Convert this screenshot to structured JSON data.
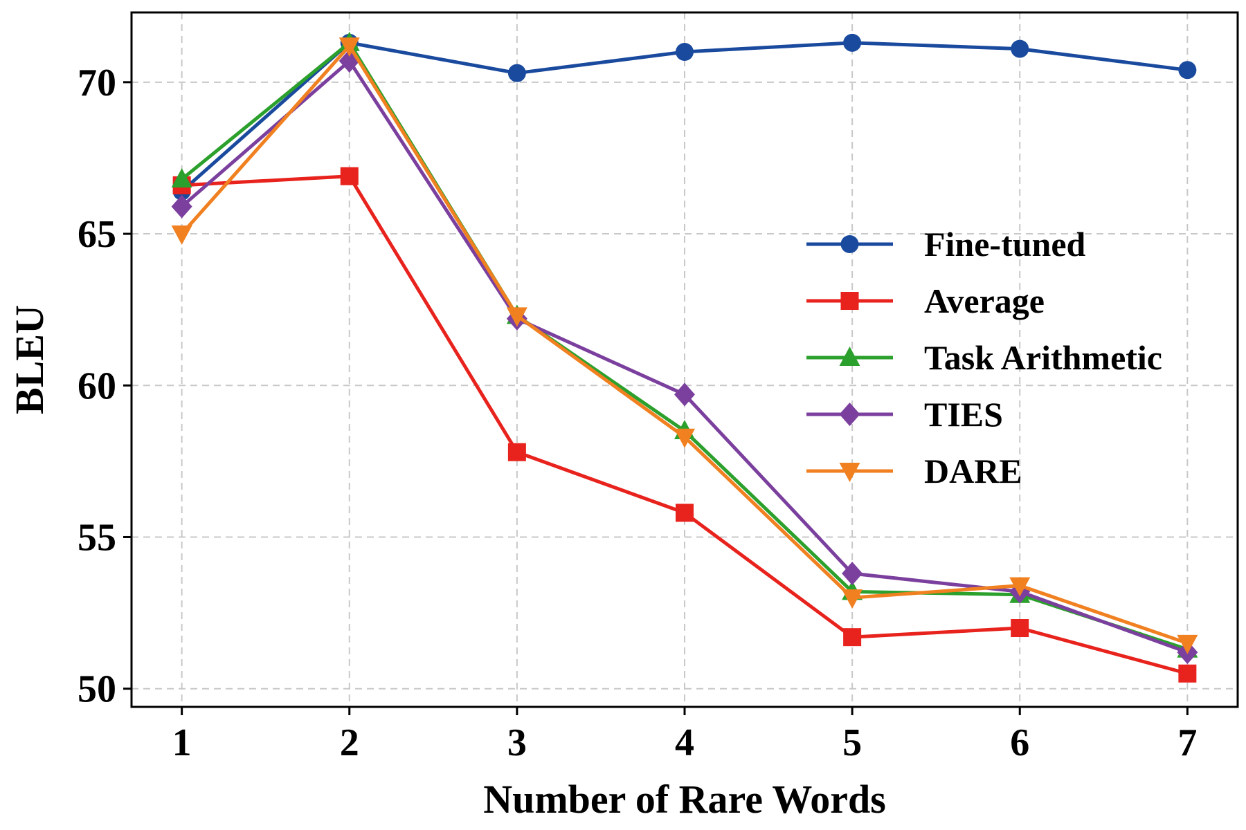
{
  "chart_data": {
    "type": "line",
    "title": "",
    "xlabel": "Number of Rare Words",
    "ylabel": "BLEU",
    "x": [
      1,
      2,
      3,
      4,
      5,
      6,
      7
    ],
    "xlim": [
      0.7,
      7.3
    ],
    "ylim": [
      49.4,
      72.3
    ],
    "xticks": [
      "1",
      "2",
      "3",
      "4",
      "5",
      "6",
      "7"
    ],
    "yticks": [
      50,
      55,
      60,
      65,
      70
    ],
    "grid": true,
    "legend_position": "center-right",
    "series": [
      {
        "name": "Fine-tuned",
        "color": "#1a4a9e",
        "marker": "circle",
        "values": [
          66.4,
          71.3,
          70.3,
          71.0,
          71.3,
          71.1,
          70.4
        ]
      },
      {
        "name": "Average",
        "color": "#e8221c",
        "marker": "square",
        "values": [
          66.6,
          66.9,
          57.8,
          55.8,
          51.7,
          52.0,
          50.5
        ]
      },
      {
        "name": "Task Arithmetic",
        "color": "#2ca02c",
        "marker": "triangle-up",
        "values": [
          66.8,
          71.3,
          62.3,
          58.5,
          53.2,
          53.1,
          51.3
        ]
      },
      {
        "name": "TIES",
        "color": "#7b3f9e",
        "marker": "diamond",
        "values": [
          65.9,
          70.7,
          62.2,
          59.7,
          53.8,
          53.2,
          51.2
        ]
      },
      {
        "name": "DARE",
        "color": "#f08020",
        "marker": "triangle-down",
        "values": [
          65.0,
          71.2,
          62.3,
          58.3,
          53.0,
          53.4,
          51.5
        ]
      }
    ]
  }
}
